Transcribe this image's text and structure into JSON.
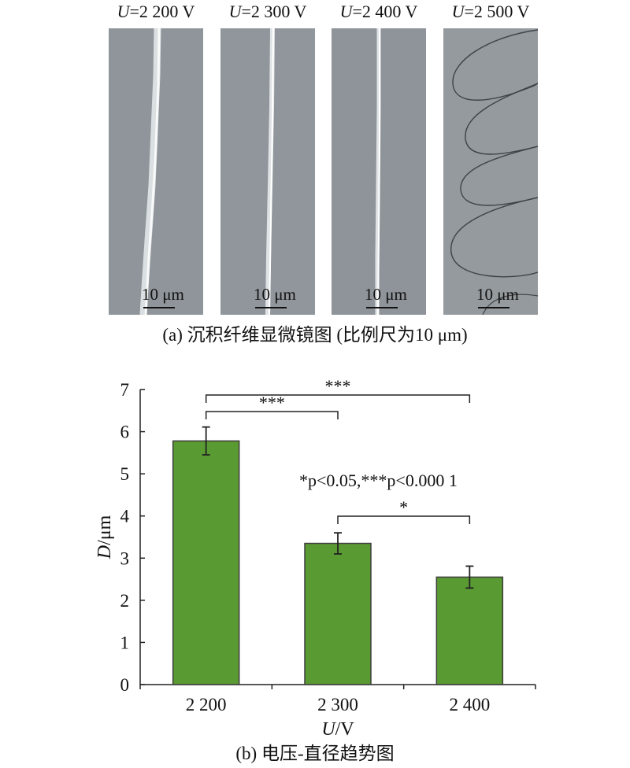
{
  "panel_a": {
    "voltage_prefix": "U",
    "labels": [
      "=2 200 V",
      "=2 300 V",
      "=2 400 V",
      "=2 500 V"
    ],
    "scale_bar_text": "10 μm",
    "caption": "(a) 沉积纤维显微镜图 (比例尺为10 μm)",
    "background_color": "#8f959a",
    "fiber_color": "#f2f4f5"
  },
  "panel_b": {
    "caption": "(b) 电压-直径趋势图"
  },
  "chart_data": {
    "type": "bar",
    "categories": [
      "2 200",
      "2 300",
      "2 400"
    ],
    "values": [
      5.78,
      3.35,
      2.55
    ],
    "errors": [
      0.33,
      0.25,
      0.26
    ],
    "ylim": [
      0,
      7
    ],
    "yticks": [
      "0",
      "1",
      "2",
      "3",
      "4",
      "5",
      "6",
      "7"
    ],
    "ylabel_italic": "D",
    "ylabel_rest": "/μm",
    "xlabel_italic": "U",
    "xlabel_rest": "/V",
    "bar_color": "#5a9a32",
    "bar_edge_color": "#3e3e3e",
    "significance": [
      {
        "from": 0,
        "to": 2,
        "label": "***"
      },
      {
        "from": 0,
        "to": 1,
        "label": "***"
      },
      {
        "from": 1,
        "to": 2,
        "label": "*"
      }
    ],
    "annotation": "*p<0.05,***p<0.000 1"
  }
}
